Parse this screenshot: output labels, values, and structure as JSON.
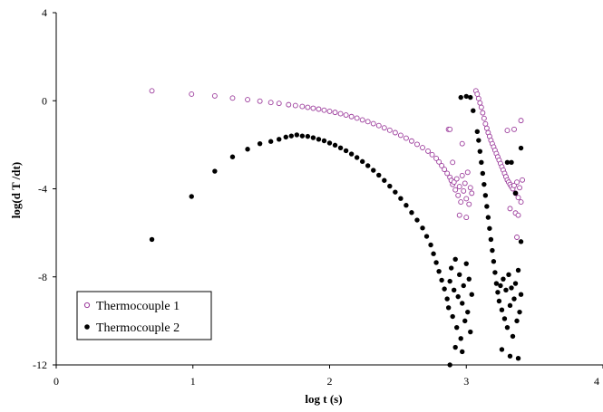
{
  "chart_data": {
    "type": "scatter",
    "xlabel": "log t (s)",
    "ylabel": "log(d T /dt)",
    "xlim": [
      0,
      4
    ],
    "ylim": [
      -12,
      4
    ],
    "xticks": [
      "0",
      "1",
      "2",
      "3",
      "4"
    ],
    "yticks": [
      "4",
      "0",
      "-4",
      "-8",
      "-12"
    ],
    "grid": false,
    "legend_position": "bottom-left",
    "series": [
      {
        "name": "Thermocouple 1",
        "marker": "open-circle",
        "color": "#9b3a9b",
        "points": [
          [
            0.7,
            0.45
          ],
          [
            0.99,
            0.3
          ],
          [
            1.16,
            0.22
          ],
          [
            1.29,
            0.12
          ],
          [
            1.4,
            0.05
          ],
          [
            1.49,
            -0.02
          ],
          [
            1.57,
            -0.08
          ],
          [
            1.63,
            -0.12
          ],
          [
            1.7,
            -0.18
          ],
          [
            1.75,
            -0.22
          ],
          [
            1.8,
            -0.26
          ],
          [
            1.84,
            -0.3
          ],
          [
            1.88,
            -0.34
          ],
          [
            1.92,
            -0.38
          ],
          [
            1.96,
            -0.43
          ],
          [
            2.0,
            -0.48
          ],
          [
            2.04,
            -0.53
          ],
          [
            2.08,
            -0.59
          ],
          [
            2.12,
            -0.65
          ],
          [
            2.16,
            -0.72
          ],
          [
            2.2,
            -0.79
          ],
          [
            2.24,
            -0.87
          ],
          [
            2.28,
            -0.95
          ],
          [
            2.32,
            -1.04
          ],
          [
            2.36,
            -1.13
          ],
          [
            2.4,
            -1.23
          ],
          [
            2.44,
            -1.34
          ],
          [
            2.48,
            -1.45
          ],
          [
            2.52,
            -1.57
          ],
          [
            2.56,
            -1.7
          ],
          [
            2.6,
            -1.83
          ],
          [
            2.64,
            -1.98
          ],
          [
            2.68,
            -2.13
          ],
          [
            2.72,
            -2.29
          ],
          [
            2.75,
            -2.45
          ],
          [
            2.78,
            -2.62
          ],
          [
            2.8,
            -2.78
          ],
          [
            2.82,
            -2.95
          ],
          [
            2.84,
            -3.12
          ],
          [
            2.86,
            -3.3
          ],
          [
            2.88,
            -3.48
          ],
          [
            2.89,
            -3.62
          ],
          [
            2.9,
            -3.8
          ],
          [
            2.91,
            -3.7
          ],
          [
            2.92,
            -4.05
          ],
          [
            2.93,
            -3.55
          ],
          [
            2.94,
            -4.3
          ],
          [
            2.95,
            -3.9
          ],
          [
            2.96,
            -4.6
          ],
          [
            2.97,
            -3.4
          ],
          [
            2.98,
            -4.1
          ],
          [
            2.99,
            -3.75
          ],
          [
            3.0,
            -4.45
          ],
          [
            3.01,
            -3.25
          ],
          [
            3.02,
            -4.7
          ],
          [
            3.03,
            -3.95
          ],
          [
            3.04,
            -4.2
          ],
          [
            2.87,
            -1.3
          ],
          [
            2.88,
            -1.3
          ],
          [
            2.9,
            -2.8
          ],
          [
            2.97,
            -1.95
          ],
          [
            3.0,
            -5.3
          ],
          [
            2.95,
            -5.2
          ],
          [
            3.07,
            0.45
          ],
          [
            3.08,
            0.3
          ],
          [
            3.09,
            0.1
          ],
          [
            3.1,
            -0.1
          ],
          [
            3.11,
            -0.3
          ],
          [
            3.12,
            -0.55
          ],
          [
            3.13,
            -0.8
          ],
          [
            3.14,
            -1.05
          ],
          [
            3.15,
            -1.25
          ],
          [
            3.16,
            -1.45
          ],
          [
            3.17,
            -1.62
          ],
          [
            3.18,
            -1.8
          ],
          [
            3.19,
            -1.95
          ],
          [
            3.2,
            -2.1
          ],
          [
            3.21,
            -2.25
          ],
          [
            3.22,
            -2.4
          ],
          [
            3.23,
            -2.55
          ],
          [
            3.24,
            -2.7
          ],
          [
            3.25,
            -2.85
          ],
          [
            3.26,
            -3.0
          ],
          [
            3.27,
            -3.15
          ],
          [
            3.28,
            -3.3
          ],
          [
            3.29,
            -3.45
          ],
          [
            3.3,
            -3.6
          ],
          [
            3.31,
            -3.7
          ],
          [
            3.32,
            -3.8
          ],
          [
            3.33,
            -3.9
          ],
          [
            3.34,
            -4.0
          ],
          [
            3.35,
            -3.85
          ],
          [
            3.36,
            -4.2
          ],
          [
            3.37,
            -3.7
          ],
          [
            3.38,
            -4.4
          ],
          [
            3.39,
            -3.95
          ],
          [
            3.4,
            -4.6
          ],
          [
            3.41,
            -3.6
          ],
          [
            3.36,
            -5.1
          ],
          [
            3.38,
            -5.2
          ],
          [
            3.4,
            -0.9
          ],
          [
            3.35,
            -1.3
          ],
          [
            3.3,
            -1.35
          ],
          [
            3.37,
            -6.2
          ],
          [
            3.32,
            -4.9
          ]
        ]
      },
      {
        "name": "Thermocouple 2",
        "marker": "filled-circle",
        "color": "#000000",
        "points": [
          [
            0.7,
            -6.3
          ],
          [
            0.99,
            -4.35
          ],
          [
            1.16,
            -3.2
          ],
          [
            1.29,
            -2.55
          ],
          [
            1.4,
            -2.2
          ],
          [
            1.49,
            -1.95
          ],
          [
            1.57,
            -1.85
          ],
          [
            1.63,
            -1.75
          ],
          [
            1.68,
            -1.65
          ],
          [
            1.72,
            -1.6
          ],
          [
            1.76,
            -1.55
          ],
          [
            1.8,
            -1.6
          ],
          [
            1.84,
            -1.62
          ],
          [
            1.88,
            -1.68
          ],
          [
            1.92,
            -1.75
          ],
          [
            1.96,
            -1.82
          ],
          [
            2.0,
            -1.92
          ],
          [
            2.04,
            -2.02
          ],
          [
            2.08,
            -2.14
          ],
          [
            2.12,
            -2.27
          ],
          [
            2.16,
            -2.42
          ],
          [
            2.2,
            -2.58
          ],
          [
            2.24,
            -2.76
          ],
          [
            2.28,
            -2.95
          ],
          [
            2.32,
            -3.16
          ],
          [
            2.36,
            -3.38
          ],
          [
            2.4,
            -3.62
          ],
          [
            2.44,
            -3.88
          ],
          [
            2.48,
            -4.15
          ],
          [
            2.52,
            -4.44
          ],
          [
            2.56,
            -4.75
          ],
          [
            2.6,
            -5.08
          ],
          [
            2.64,
            -5.42
          ],
          [
            2.68,
            -5.78
          ],
          [
            2.71,
            -6.16
          ],
          [
            2.74,
            -6.55
          ],
          [
            2.76,
            -6.95
          ],
          [
            2.78,
            -7.35
          ],
          [
            2.8,
            -7.75
          ],
          [
            2.82,
            -8.15
          ],
          [
            2.84,
            -8.55
          ],
          [
            2.86,
            -9.0
          ],
          [
            2.87,
            -9.4
          ],
          [
            2.88,
            -8.2
          ],
          [
            2.89,
            -7.6
          ],
          [
            2.9,
            -9.8
          ],
          [
            2.91,
            -8.6
          ],
          [
            2.92,
            -7.2
          ],
          [
            2.93,
            -10.3
          ],
          [
            2.94,
            -8.9
          ],
          [
            2.95,
            -7.9
          ],
          [
            2.96,
            -10.8
          ],
          [
            2.97,
            -9.2
          ],
          [
            2.98,
            -8.4
          ],
          [
            2.99,
            -10.0
          ],
          [
            3.0,
            -7.4
          ],
          [
            3.01,
            -9.6
          ],
          [
            3.02,
            -8.1
          ],
          [
            3.03,
            -10.5
          ],
          [
            3.04,
            -8.8
          ],
          [
            2.92,
            -11.2
          ],
          [
            2.97,
            -11.4
          ],
          [
            2.88,
            -12.0
          ],
          [
            2.96,
            0.15
          ],
          [
            3.0,
            0.2
          ],
          [
            3.03,
            0.15
          ],
          [
            3.05,
            -0.45
          ],
          [
            3.08,
            -1.4
          ],
          [
            3.09,
            -1.8
          ],
          [
            3.1,
            -2.3
          ],
          [
            3.11,
            -2.8
          ],
          [
            3.12,
            -3.3
          ],
          [
            3.13,
            -3.8
          ],
          [
            3.14,
            -4.3
          ],
          [
            3.15,
            -4.8
          ],
          [
            3.16,
            -5.3
          ],
          [
            3.17,
            -5.8
          ],
          [
            3.18,
            -6.3
          ],
          [
            3.19,
            -6.8
          ],
          [
            3.2,
            -7.3
          ],
          [
            3.21,
            -7.8
          ],
          [
            3.22,
            -8.3
          ],
          [
            3.23,
            -8.7
          ],
          [
            3.24,
            -9.1
          ],
          [
            3.25,
            -8.4
          ],
          [
            3.26,
            -9.5
          ],
          [
            3.27,
            -8.1
          ],
          [
            3.28,
            -9.9
          ],
          [
            3.29,
            -8.6
          ],
          [
            3.3,
            -10.3
          ],
          [
            3.31,
            -7.9
          ],
          [
            3.32,
            -9.3
          ],
          [
            3.33,
            -8.5
          ],
          [
            3.34,
            -10.7
          ],
          [
            3.35,
            -9.0
          ],
          [
            3.36,
            -8.3
          ],
          [
            3.37,
            -10.0
          ],
          [
            3.38,
            -7.7
          ],
          [
            3.39,
            -9.6
          ],
          [
            3.4,
            -8.8
          ],
          [
            3.26,
            -11.3
          ],
          [
            3.32,
            -11.6
          ],
          [
            3.38,
            -11.7
          ],
          [
            3.3,
            -2.8
          ],
          [
            3.33,
            -2.8
          ],
          [
            3.4,
            -2.15
          ],
          [
            3.36,
            -4.2
          ],
          [
            3.4,
            -6.4
          ]
        ]
      }
    ]
  }
}
